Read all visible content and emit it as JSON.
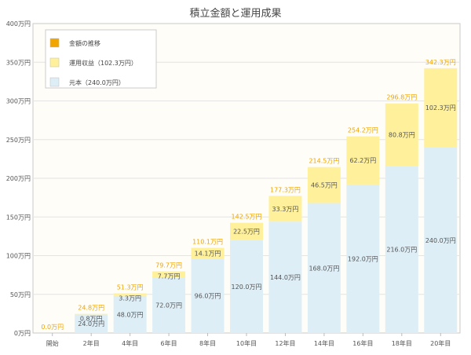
{
  "chart_data": {
    "type": "bar",
    "stacked": true,
    "title": "積立金額と運用成果",
    "categories": [
      "開始",
      "2年目",
      "4年目",
      "6年目",
      "8年目",
      "10年目",
      "12年目",
      "14年目",
      "16年目",
      "18年目",
      "20年目"
    ],
    "y_ticks": [
      "0万円",
      "50万円",
      "100万円",
      "150万円",
      "200万円",
      "250万円",
      "300万円",
      "350万円",
      "400万円"
    ],
    "ylim": [
      0,
      400
    ],
    "grid": true,
    "legend_position": "top-left",
    "series": [
      {
        "name": "元本（240.0万円）",
        "color": "#ddeef6",
        "values": [
          0,
          24.0,
          48.0,
          72.0,
          96.0,
          120.0,
          144.0,
          168.0,
          192.0,
          216.0,
          240.0
        ],
        "labels": [
          "",
          "24.0万円",
          "48.0万円",
          "72.0万円",
          "96.0万円",
          "120.0万円",
          "144.0万円",
          "168.0万円",
          "192.0万円",
          "216.0万円",
          "240.0万円"
        ]
      },
      {
        "name": "運用収益（102.3万円）",
        "color": "#fff19c",
        "values": [
          0,
          0.8,
          3.3,
          7.7,
          14.1,
          22.5,
          33.3,
          46.5,
          62.2,
          80.8,
          102.3
        ],
        "labels": [
          "",
          "0.8万円",
          "3.3万円",
          "7.7万円",
          "14.1万円",
          "22.5万円",
          "33.3万円",
          "46.5万円",
          "62.2万円",
          "80.8万円",
          "102.3万円"
        ]
      }
    ],
    "totals": {
      "name": "金額の推移",
      "color": "#f0a500",
      "values": [
        0.0,
        24.8,
        51.3,
        79.7,
        110.1,
        142.5,
        177.3,
        214.5,
        254.2,
        296.8,
        342.3
      ],
      "labels": [
        "0.0万円",
        "24.8万円",
        "51.3万円",
        "79.7万円",
        "110.1万円",
        "142.5万円",
        "177.3万円",
        "214.5万円",
        "254.2万円",
        "296.8万円",
        "342.3万円"
      ]
    },
    "legend": [
      {
        "label": "金額の推移",
        "color": "#f0a500"
      },
      {
        "label": "運用収益（102.3万円）",
        "color": "#fff19c"
      },
      {
        "label": "元本（240.0万円）",
        "color": "#ddeef6"
      }
    ]
  }
}
